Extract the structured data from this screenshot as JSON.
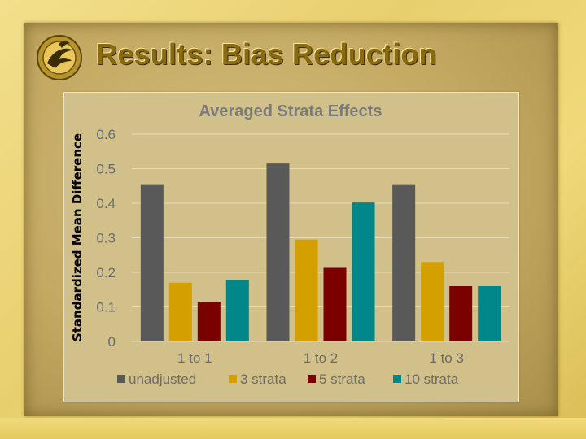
{
  "slide": {
    "title": "Results: Bias Reduction"
  },
  "colors": {
    "unadjusted": "#595959",
    "strata3": "#d4a000",
    "strata5": "#7b0000",
    "strata10": "#00878a",
    "text": "#6b6b6b",
    "title": "#7a7a7a"
  },
  "chart_data": {
    "type": "bar",
    "title": "Averaged Strata Effects",
    "xlabel": "",
    "ylabel": "Standardized Mean Difference",
    "categories": [
      "1 to 1",
      "1 to 2",
      "1 to 3"
    ],
    "ylim": [
      0,
      0.6
    ],
    "yticks": [
      0,
      0.1,
      0.2,
      0.3,
      0.4,
      0.5,
      0.6
    ],
    "ytick_labels": [
      "0",
      "0.1",
      "0.2",
      "0.3",
      "0.4",
      "0.5",
      "0.6"
    ],
    "grid": true,
    "legend_position": "bottom",
    "series": [
      {
        "name": "unadjusted",
        "color": "#595959",
        "values": [
          0.455,
          0.515,
          0.455
        ]
      },
      {
        "name": "3 strata",
        "color": "#d4a000",
        "values": [
          0.17,
          0.295,
          0.23
        ]
      },
      {
        "name": "5 strata",
        "color": "#7b0000",
        "values": [
          0.115,
          0.213,
          0.16
        ]
      },
      {
        "name": "10 strata",
        "color": "#00878a",
        "values": [
          0.178,
          0.402,
          0.16
        ]
      }
    ]
  }
}
